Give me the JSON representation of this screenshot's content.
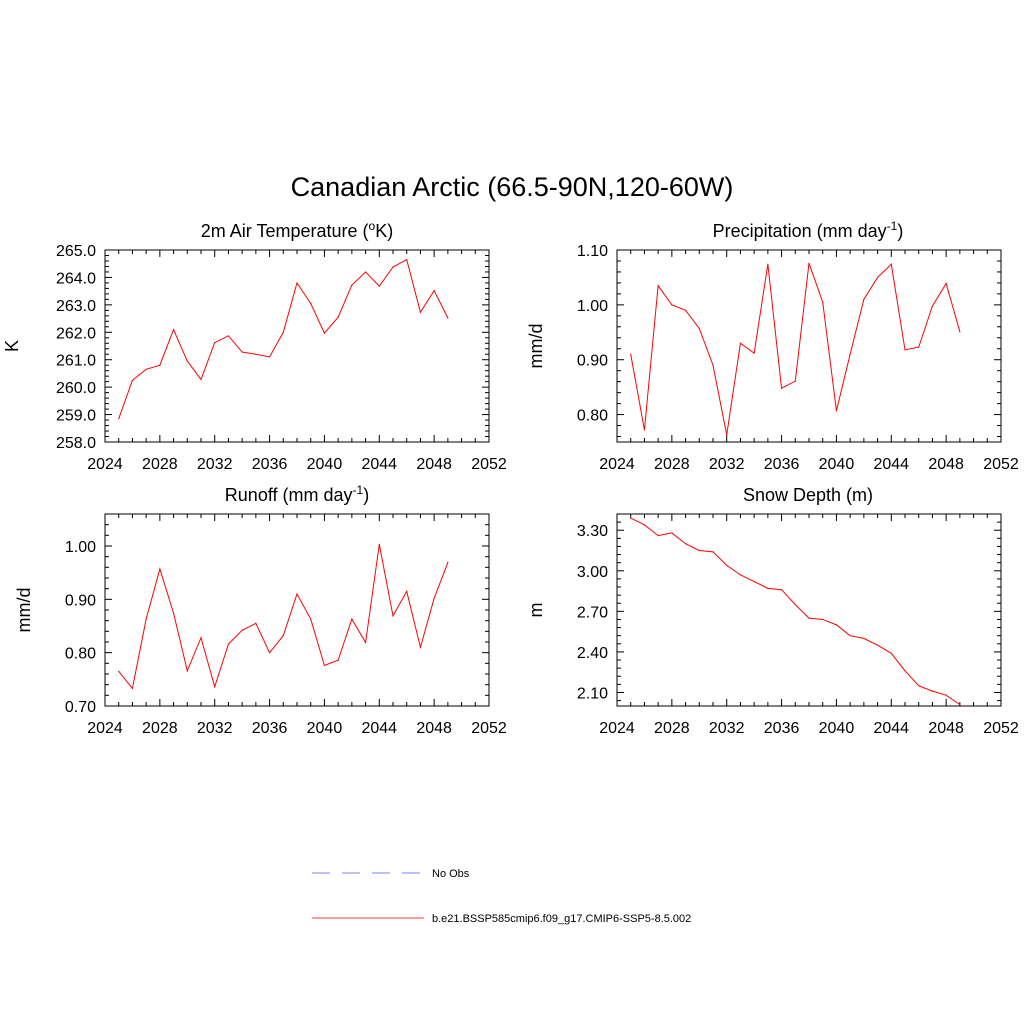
{
  "title": "Canadian Arctic (66.5-90N,120-60W)",
  "legend": [
    {
      "label": "No Obs",
      "color": "#9999ff",
      "dash": true
    },
    {
      "label": "b.e21.BSSP585cmip6.f09_g17.CMIP6-SSP5-8.5.002",
      "color": "#ff6666",
      "dash": false
    }
  ],
  "line_color": "#ff0000",
  "chart_data": [
    {
      "type": "line",
      "title_main": "2m Air Temperature (",
      "title_sup": "o",
      "title_tail": "K)",
      "ylabel": "K",
      "xlim": [
        2024,
        2052
      ],
      "ylim": [
        258.0,
        265.0
      ],
      "xticks": [
        "2024",
        "2028",
        "2032",
        "2036",
        "2040",
        "2044",
        "2048",
        "2052"
      ],
      "yticks": [
        "258.0",
        "259.0",
        "260.0",
        "261.0",
        "262.0",
        "263.0",
        "264.0",
        "265.0"
      ],
      "x": [
        2025,
        2026,
        2027,
        2028,
        2029,
        2030,
        2031,
        2032,
        2033,
        2034,
        2035,
        2036,
        2037,
        2038,
        2039,
        2040,
        2041,
        2042,
        2043,
        2044,
        2045,
        2046,
        2047,
        2048,
        2049
      ],
      "y": [
        258.85,
        260.25,
        260.65,
        260.8,
        262.1,
        260.95,
        260.28,
        261.62,
        261.87,
        261.28,
        261.2,
        261.1,
        262.0,
        263.8,
        263.05,
        261.97,
        262.55,
        263.72,
        264.2,
        263.68,
        264.38,
        264.65,
        262.73,
        263.52,
        262.52
      ]
    },
    {
      "type": "line",
      "title_main": "Precipitation (mm day",
      "title_sup": "-1",
      "title_tail": ")",
      "ylabel": "mm/d",
      "xlim": [
        2024,
        2052
      ],
      "ylim": [
        0.75,
        1.1
      ],
      "xticks": [
        "2024",
        "2028",
        "2032",
        "2036",
        "2040",
        "2044",
        "2048",
        "2052"
      ],
      "yticks": [
        "0.80",
        "0.90",
        "1.00",
        "1.10"
      ],
      "x": [
        2025,
        2026,
        2027,
        2028,
        2029,
        2030,
        2031,
        2032,
        2033,
        2034,
        2035,
        2036,
        2037,
        2038,
        2039,
        2040,
        2041,
        2042,
        2043,
        2044,
        2045,
        2046,
        2047,
        2048,
        2049
      ],
      "y": [
        0.91,
        0.772,
        1.035,
        1.0,
        0.99,
        0.957,
        0.89,
        0.763,
        0.93,
        0.912,
        1.074,
        0.848,
        0.861,
        1.076,
        1.005,
        0.807,
        0.91,
        1.01,
        1.05,
        1.074,
        0.918,
        0.923,
        0.998,
        1.039,
        0.951
      ]
    },
    {
      "type": "line",
      "title_main": "Runoff (mm day",
      "title_sup": "-1",
      "title_tail": ")",
      "ylabel": "mm/d",
      "xlim": [
        2024,
        2052
      ],
      "ylim": [
        0.7,
        1.06
      ],
      "xticks": [
        "2024",
        "2028",
        "2032",
        "2036",
        "2040",
        "2044",
        "2048",
        "2052"
      ],
      "yticks": [
        "0.70",
        "0.80",
        "0.90",
        "1.00"
      ],
      "x": [
        2025,
        2026,
        2027,
        2028,
        2029,
        2030,
        2031,
        2032,
        2033,
        2034,
        2035,
        2036,
        2037,
        2038,
        2039,
        2040,
        2041,
        2042,
        2043,
        2044,
        2045,
        2046,
        2047,
        2048,
        2049
      ],
      "y": [
        0.765,
        0.733,
        0.863,
        0.957,
        0.874,
        0.766,
        0.828,
        0.736,
        0.816,
        0.842,
        0.855,
        0.8,
        0.832,
        0.91,
        0.863,
        0.776,
        0.786,
        0.863,
        0.819,
        1.003,
        0.869,
        0.915,
        0.81,
        0.902,
        0.969
      ]
    },
    {
      "type": "line",
      "title_main": "Snow Depth (m)",
      "title_sup": "",
      "title_tail": "",
      "ylabel": "m",
      "xlim": [
        2024,
        2052
      ],
      "ylim": [
        2.0,
        3.42
      ],
      "xticks": [
        "2024",
        "2028",
        "2032",
        "2036",
        "2040",
        "2044",
        "2048",
        "2052"
      ],
      "yticks": [
        "2.10",
        "2.40",
        "2.70",
        "3.00",
        "3.30"
      ],
      "x": [
        2025,
        2026,
        2027,
        2028,
        2029,
        2030,
        2031,
        2032,
        2033,
        2034,
        2035,
        2036,
        2037,
        2038,
        2039,
        2040,
        2041,
        2042,
        2043,
        2044,
        2045,
        2046,
        2047,
        2048,
        2049
      ],
      "y": [
        3.39,
        3.34,
        3.26,
        3.28,
        3.2,
        3.15,
        3.14,
        3.04,
        2.97,
        2.92,
        2.87,
        2.86,
        2.75,
        2.65,
        2.64,
        2.6,
        2.52,
        2.5,
        2.45,
        2.39,
        2.26,
        2.15,
        2.11,
        2.08,
        2.01
      ]
    }
  ]
}
